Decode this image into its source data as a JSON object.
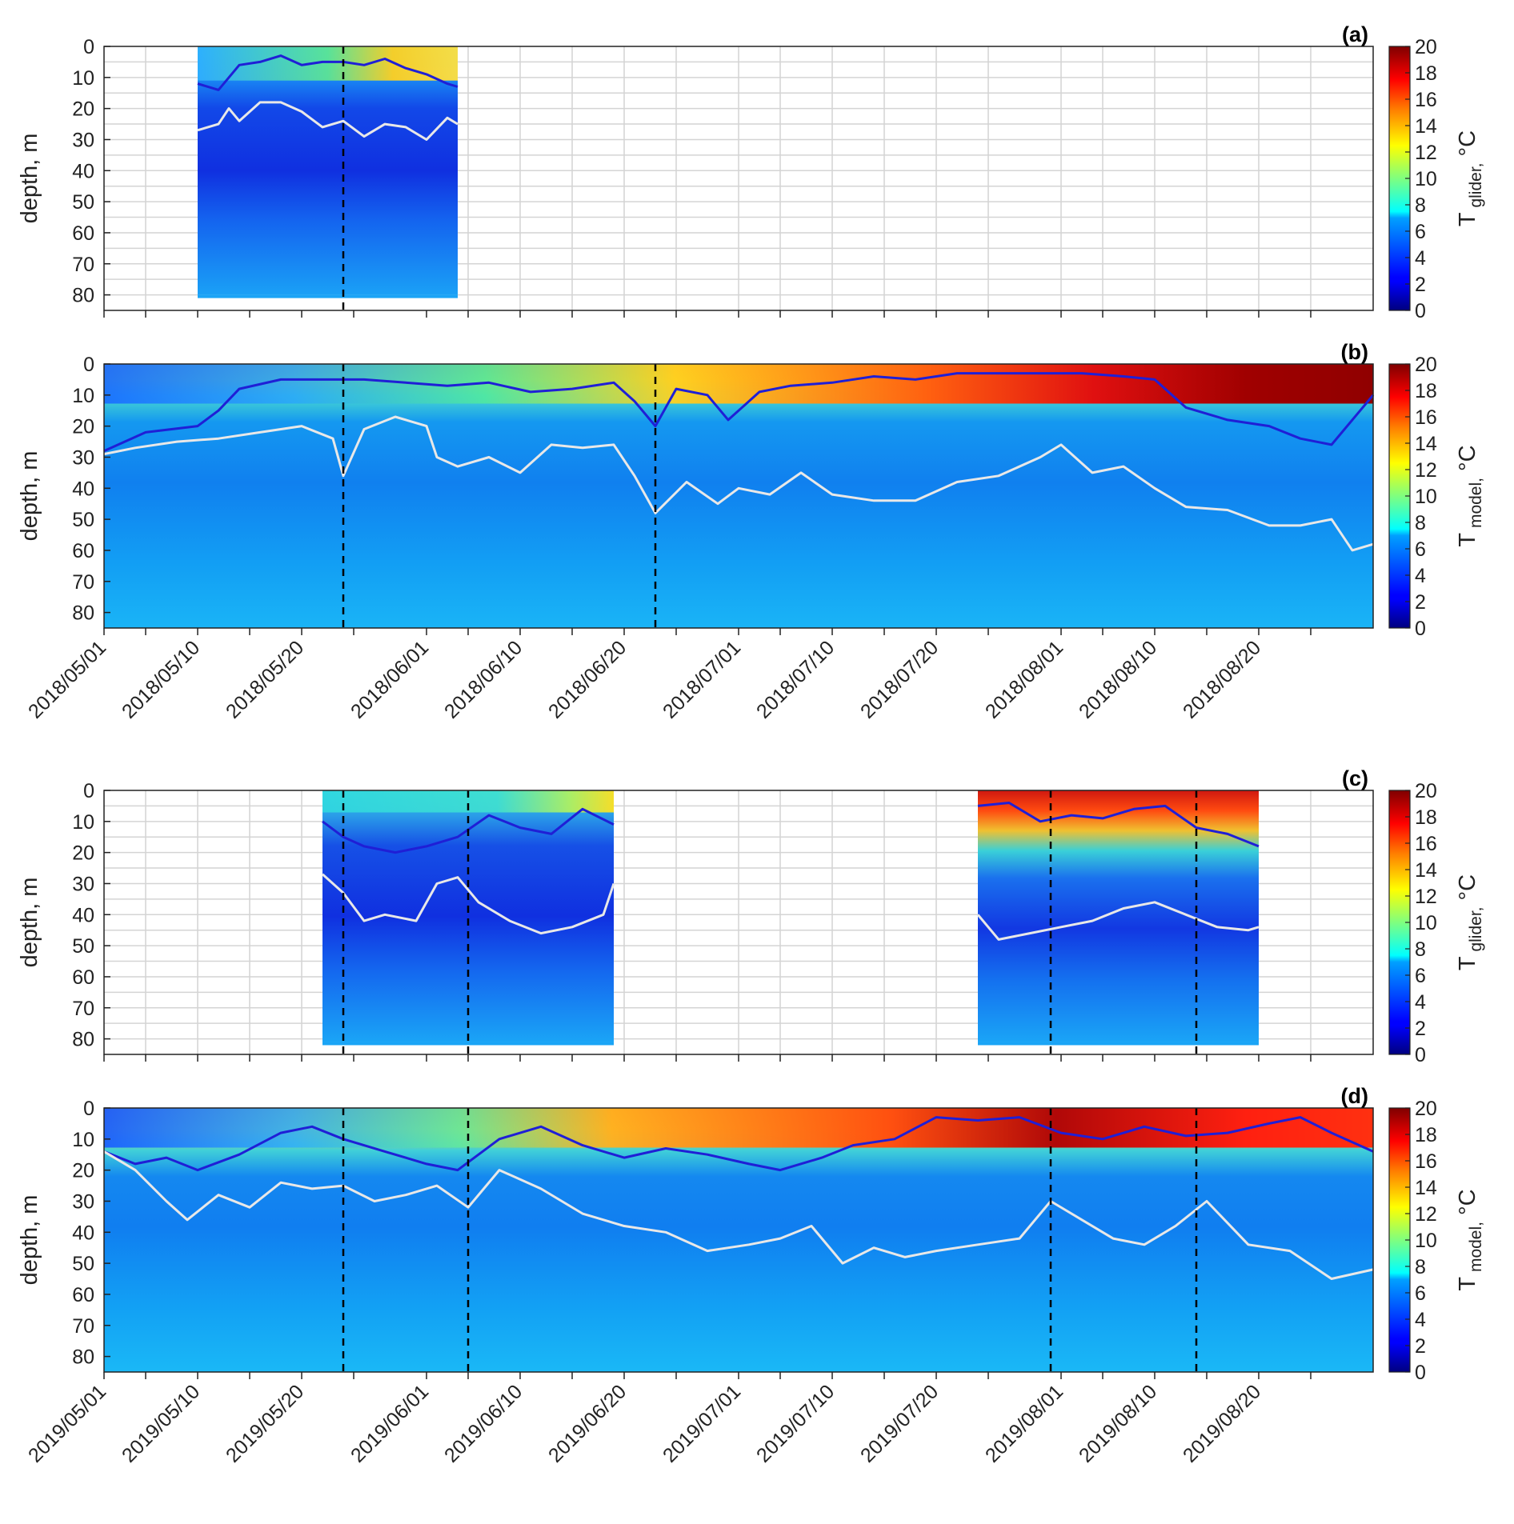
{
  "chart_data": [
    {
      "type": "heatmap",
      "panel_label": "(a)",
      "year": 2018,
      "ylabel": "depth, m",
      "colorbar_label": "T",
      "colorbar_subscript": "glider",
      "colorbar_unit": "°C",
      "colorbar_ticks": [
        "0",
        "2",
        "4",
        "6",
        "8",
        "10",
        "12",
        "14",
        "16",
        "18",
        "20"
      ],
      "clim": [
        0,
        20
      ],
      "yticks": [
        "0",
        "10",
        "20",
        "30",
        "40",
        "50",
        "60",
        "70",
        "80"
      ],
      "ylim": [
        0,
        85
      ],
      "xlim": [
        "2018/05/01",
        "2018/08/31"
      ],
      "xtick_labels": [],
      "data_windows": [
        [
          "2018/05/10",
          "2018/06/04"
        ]
      ],
      "dashed_lines": [
        "2018/05/24"
      ],
      "bottom_depth": 80,
      "series": [
        {
          "name": "",
          "color": "#1f1fd6",
          "x": [
            "2018/05/10",
            "2018/05/12",
            "2018/05/14",
            "2018/05/16",
            "2018/05/18",
            "2018/05/20",
            "2018/05/22",
            "2018/05/24",
            "2018/05/26",
            "2018/05/28",
            "2018/05/30",
            "2018/06/01",
            "2018/06/03",
            "2018/06/04"
          ],
          "y": [
            12,
            14,
            6,
            5,
            3,
            6,
            5,
            5,
            6,
            4,
            7,
            9,
            12,
            13
          ]
        },
        {
          "name": "",
          "color": "#e8e8e8",
          "x": [
            "2018/05/10",
            "2018/05/12",
            "2018/05/13",
            "2018/05/14",
            "2018/05/16",
            "2018/05/18",
            "2018/05/20",
            "2018/05/22",
            "2018/05/24",
            "2018/05/26",
            "2018/05/28",
            "2018/05/30",
            "2018/06/01",
            "2018/06/03",
            "2018/06/04"
          ],
          "y": [
            27,
            25,
            20,
            24,
            18,
            18,
            21,
            26,
            24,
            29,
            25,
            26,
            30,
            23,
            25
          ]
        }
      ]
    },
    {
      "type": "heatmap",
      "panel_label": "(b)",
      "year": 2018,
      "ylabel": "depth, m",
      "colorbar_label": "T",
      "colorbar_subscript": "model",
      "colorbar_unit": "°C",
      "colorbar_ticks": [
        "0",
        "2",
        "4",
        "6",
        "8",
        "10",
        "12",
        "14",
        "16",
        "18",
        "20"
      ],
      "clim": [
        0,
        20
      ],
      "yticks": [
        "0",
        "10",
        "20",
        "30",
        "40",
        "50",
        "60",
        "70",
        "80"
      ],
      "ylim": [
        0,
        85
      ],
      "xlim": [
        "2018/05/01",
        "2018/08/31"
      ],
      "xtick_labels": [
        "2018/05/01",
        "2018/05/10",
        "2018/05/20",
        "2018/06/01",
        "2018/06/10",
        "2018/06/20",
        "2018/07/01",
        "2018/07/10",
        "2018/07/20",
        "2018/08/01",
        "2018/08/10",
        "2018/08/20"
      ],
      "data_windows": [
        [
          "2018/05/01",
          "2018/08/31"
        ]
      ],
      "dashed_lines": [
        "2018/05/24",
        "2018/06/23"
      ],
      "series": [
        {
          "name": "",
          "color": "#1f1fd6",
          "x": [
            "2018/05/01",
            "2018/05/05",
            "2018/05/10",
            "2018/05/12",
            "2018/05/14",
            "2018/05/18",
            "2018/05/22",
            "2018/05/26",
            "2018/05/30",
            "2018/06/03",
            "2018/06/07",
            "2018/06/11",
            "2018/06/15",
            "2018/06/19",
            "2018/06/21",
            "2018/06/23",
            "2018/06/25",
            "2018/06/28",
            "2018/06/30",
            "2018/07/03",
            "2018/07/06",
            "2018/07/10",
            "2018/07/14",
            "2018/07/18",
            "2018/07/22",
            "2018/07/26",
            "2018/07/30",
            "2018/08/03",
            "2018/08/07",
            "2018/08/10",
            "2018/08/13",
            "2018/08/17",
            "2018/08/21",
            "2018/08/24",
            "2018/08/27",
            "2018/08/31"
          ],
          "y": [
            28,
            22,
            20,
            15,
            8,
            5,
            5,
            5,
            6,
            7,
            6,
            9,
            8,
            6,
            12,
            20,
            8,
            10,
            18,
            9,
            7,
            6,
            4,
            5,
            3,
            3,
            3,
            3,
            4,
            5,
            14,
            18,
            20,
            24,
            26,
            10
          ]
        },
        {
          "name": "",
          "color": "#e8e8e8",
          "x": [
            "2018/05/01",
            "2018/05/04",
            "2018/05/08",
            "2018/05/12",
            "2018/05/16",
            "2018/05/20",
            "2018/05/23",
            "2018/05/24",
            "2018/05/26",
            "2018/05/29",
            "2018/06/01",
            "2018/06/02",
            "2018/06/04",
            "2018/06/07",
            "2018/06/10",
            "2018/06/13",
            "2018/06/16",
            "2018/06/19",
            "2018/06/21",
            "2018/06/23",
            "2018/06/26",
            "2018/06/29",
            "2018/07/01",
            "2018/07/04",
            "2018/07/07",
            "2018/07/10",
            "2018/07/14",
            "2018/07/18",
            "2018/07/22",
            "2018/07/26",
            "2018/07/30",
            "2018/08/01",
            "2018/08/04",
            "2018/08/07",
            "2018/08/10",
            "2018/08/13",
            "2018/08/17",
            "2018/08/21",
            "2018/08/24",
            "2018/08/27",
            "2018/08/29",
            "2018/08/31"
          ],
          "y": [
            29,
            27,
            25,
            24,
            22,
            20,
            24,
            36,
            21,
            17,
            20,
            30,
            33,
            30,
            35,
            26,
            27,
            26,
            36,
            48,
            38,
            45,
            40,
            42,
            35,
            42,
            44,
            44,
            38,
            36,
            30,
            26,
            35,
            33,
            40,
            46,
            47,
            52,
            52,
            50,
            60,
            58
          ]
        }
      ]
    },
    {
      "type": "heatmap",
      "panel_label": "(c)",
      "year": 2019,
      "ylabel": "depth, m",
      "colorbar_label": "T",
      "colorbar_subscript": "glider",
      "colorbar_unit": "°C",
      "colorbar_ticks": [
        "0",
        "2",
        "4",
        "6",
        "8",
        "10",
        "12",
        "14",
        "16",
        "18",
        "20"
      ],
      "clim": [
        0,
        20
      ],
      "yticks": [
        "0",
        "10",
        "20",
        "30",
        "40",
        "50",
        "60",
        "70",
        "80"
      ],
      "ylim": [
        0,
        85
      ],
      "xlim": [
        "2019/05/01",
        "2019/08/31"
      ],
      "xtick_labels": [],
      "data_windows": [
        [
          "2019/05/22",
          "2019/06/19"
        ],
        [
          "2019/07/24",
          "2019/08/20"
        ]
      ],
      "dashed_lines": [
        "2019/05/24",
        "2019/06/05",
        "2019/07/31",
        "2019/08/14"
      ],
      "bottom_depth": 81,
      "series": [
        {
          "name": "",
          "color": "#1f1fd6",
          "x": [
            "2019/05/22",
            "2019/05/24",
            "2019/05/26",
            "2019/05/29",
            "2019/06/01",
            "2019/06/04",
            "2019/06/07",
            "2019/06/10",
            "2019/06/13",
            "2019/06/16",
            "2019/06/19"
          ],
          "y": [
            10,
            15,
            18,
            20,
            18,
            15,
            8,
            12,
            14,
            6,
            11
          ]
        },
        {
          "name": "",
          "color": "#1f1fd6",
          "x": [
            "2019/07/24",
            "2019/07/27",
            "2019/07/30",
            "2019/08/02",
            "2019/08/05",
            "2019/08/08",
            "2019/08/11",
            "2019/08/14",
            "2019/08/17",
            "2019/08/20"
          ],
          "y": [
            5,
            4,
            10,
            8,
            9,
            6,
            5,
            12,
            14,
            18
          ]
        },
        {
          "name": "",
          "color": "#e8e8e8",
          "x": [
            "2019/05/22",
            "2019/05/24",
            "2019/05/26",
            "2019/05/28",
            "2019/05/31",
            "2019/06/02",
            "2019/06/04",
            "2019/06/06",
            "2019/06/09",
            "2019/06/12",
            "2019/06/15",
            "2019/06/18",
            "2019/06/19"
          ],
          "y": [
            27,
            33,
            42,
            40,
            42,
            30,
            28,
            36,
            42,
            46,
            44,
            40,
            30
          ]
        },
        {
          "name": "",
          "color": "#e8e8e8",
          "x": [
            "2019/07/24",
            "2019/07/26",
            "2019/07/29",
            "2019/08/01",
            "2019/08/04",
            "2019/08/07",
            "2019/08/10",
            "2019/08/13",
            "2019/08/16",
            "2019/08/19",
            "2019/08/20"
          ],
          "y": [
            40,
            48,
            46,
            44,
            42,
            38,
            36,
            40,
            44,
            45,
            44
          ]
        }
      ]
    },
    {
      "type": "heatmap",
      "panel_label": "(d)",
      "year": 2019,
      "ylabel": "depth, m",
      "colorbar_label": "T",
      "colorbar_subscript": "model",
      "colorbar_unit": "°C",
      "colorbar_ticks": [
        "0",
        "2",
        "4",
        "6",
        "8",
        "10",
        "12",
        "14",
        "16",
        "18",
        "20"
      ],
      "clim": [
        0,
        20
      ],
      "yticks": [
        "0",
        "10",
        "20",
        "30",
        "40",
        "50",
        "60",
        "70",
        "80"
      ],
      "ylim": [
        0,
        85
      ],
      "xlim": [
        "2019/05/01",
        "2019/08/31"
      ],
      "xtick_labels": [
        "2019/05/01",
        "2019/05/10",
        "2019/05/20",
        "2019/06/01",
        "2019/06/10",
        "2019/06/20",
        "2019/07/01",
        "2019/07/10",
        "2019/07/20",
        "2019/08/01",
        "2019/08/10",
        "2019/08/20"
      ],
      "data_windows": [
        [
          "2019/05/01",
          "2019/08/31"
        ]
      ],
      "dashed_lines": [
        "2019/05/24",
        "2019/06/05",
        "2019/07/31",
        "2019/08/14"
      ],
      "series": [
        {
          "name": "",
          "color": "#1f1fd6",
          "x": [
            "2019/05/01",
            "2019/05/04",
            "2019/05/07",
            "2019/05/10",
            "2019/05/14",
            "2019/05/18",
            "2019/05/21",
            "2019/05/24",
            "2019/05/28",
            "2019/06/01",
            "2019/06/04",
            "2019/06/08",
            "2019/06/12",
            "2019/06/16",
            "2019/06/20",
            "2019/06/24",
            "2019/06/28",
            "2019/07/02",
            "2019/07/05",
            "2019/07/09",
            "2019/07/12",
            "2019/07/16",
            "2019/07/20",
            "2019/07/24",
            "2019/07/28",
            "2019/08/01",
            "2019/08/05",
            "2019/08/09",
            "2019/08/13",
            "2019/08/17",
            "2019/08/21",
            "2019/08/24",
            "2019/08/27",
            "2019/08/31"
          ],
          "y": [
            14,
            18,
            16,
            20,
            15,
            8,
            6,
            10,
            14,
            18,
            20,
            10,
            6,
            12,
            16,
            13,
            15,
            18,
            20,
            16,
            12,
            10,
            3,
            4,
            3,
            8,
            10,
            6,
            9,
            8,
            5,
            3,
            8,
            14
          ]
        },
        {
          "name": "",
          "color": "#e8e8e8",
          "x": [
            "2019/05/01",
            "2019/05/04",
            "2019/05/07",
            "2019/05/09",
            "2019/05/12",
            "2019/05/15",
            "2019/05/18",
            "2019/05/21",
            "2019/05/24",
            "2019/05/27",
            "2019/05/30",
            "2019/06/02",
            "2019/06/05",
            "2019/06/08",
            "2019/06/12",
            "2019/06/16",
            "2019/06/20",
            "2019/06/24",
            "2019/06/28",
            "2019/07/02",
            "2019/07/05",
            "2019/07/08",
            "2019/07/11",
            "2019/07/14",
            "2019/07/17",
            "2019/07/20",
            "2019/07/24",
            "2019/07/28",
            "2019/07/31",
            "2019/08/03",
            "2019/08/06",
            "2019/08/09",
            "2019/08/12",
            "2019/08/15",
            "2019/08/19",
            "2019/08/23",
            "2019/08/27",
            "2019/08/31"
          ],
          "y": [
            14,
            20,
            30,
            36,
            28,
            32,
            24,
            26,
            25,
            30,
            28,
            25,
            32,
            20,
            26,
            34,
            38,
            40,
            46,
            44,
            42,
            38,
            50,
            45,
            48,
            46,
            44,
            42,
            30,
            36,
            42,
            44,
            38,
            30,
            44,
            46,
            55,
            52
          ]
        }
      ]
    }
  ]
}
